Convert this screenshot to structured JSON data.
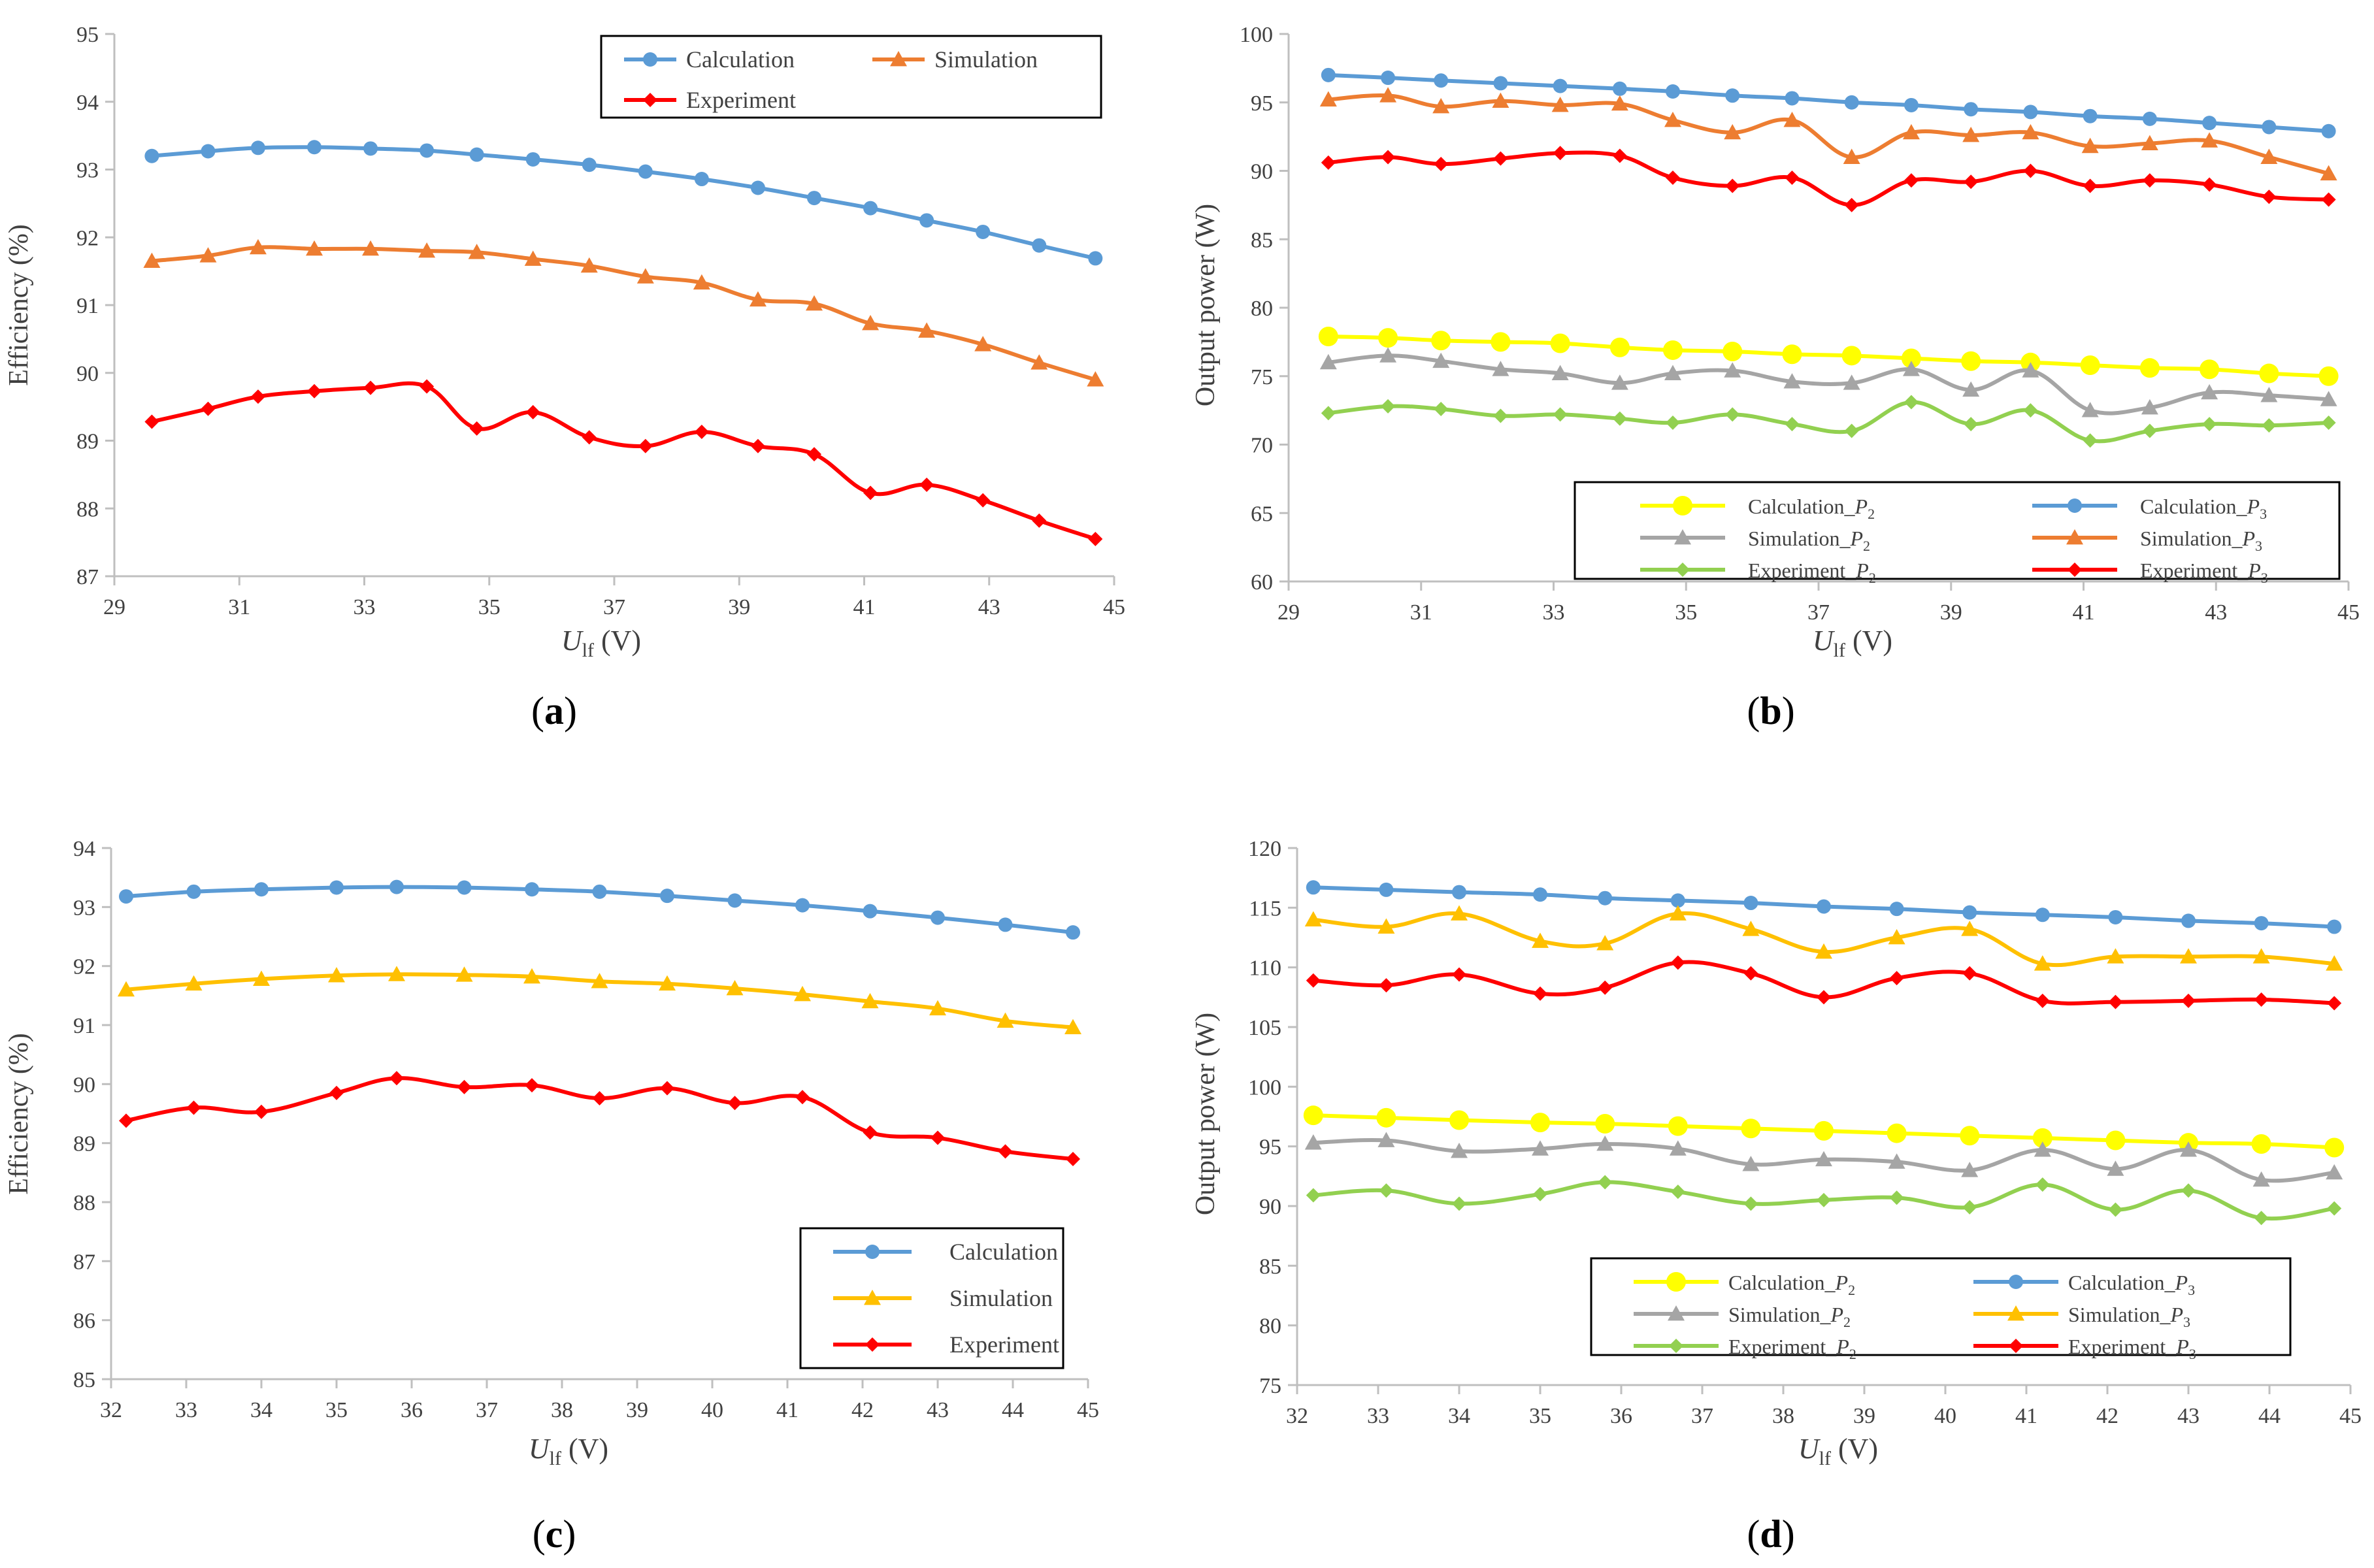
{
  "figure": {
    "panels": [
      {
        "id": "a",
        "caption_letter": "a",
        "ylabel": "Efficiency (%)",
        "xlabel_main": "U",
        "xlabel_sub": "lf",
        "xlabel_unit": " (V)"
      },
      {
        "id": "b",
        "caption_letter": "b",
        "ylabel": "Output power (W)",
        "xlabel_main": "U",
        "xlabel_sub": "lf",
        "xlabel_unit": " (V)"
      },
      {
        "id": "c",
        "caption_letter": "c",
        "ylabel": "Efficiency (%)",
        "xlabel_main": "U",
        "xlabel_sub": "lf",
        "xlabel_unit": " (V)"
      },
      {
        "id": "d",
        "caption_letter": "d",
        "ylabel": "Output power (W)",
        "xlabel_main": "U",
        "xlabel_sub": "lf",
        "xlabel_unit": " (V)"
      }
    ]
  },
  "chart_data": [
    {
      "id": "a",
      "type": "line",
      "title": "",
      "xlabel": "Ulf (V)",
      "ylabel": "Efficiency (%)",
      "xlim": [
        29,
        45
      ],
      "ylim": [
        87,
        95
      ],
      "xticks": [
        29,
        31,
        33,
        35,
        37,
        39,
        41,
        43,
        45
      ],
      "yticks": [
        87,
        88,
        89,
        90,
        91,
        92,
        93,
        94,
        95
      ],
      "grid": false,
      "legend": {
        "placement": "top-right",
        "columns": 2,
        "entries": [
          {
            "label": "Calculation",
            "marker_label": ""
          },
          {
            "label": "Simulation",
            "marker_label": ""
          },
          {
            "label": "Experiment",
            "marker_label": ""
          }
        ]
      },
      "series": [
        {
          "name": "Calculation",
          "color": "#5b9bd5",
          "marker": "circle",
          "x": [
            29.6,
            30.5,
            31.3,
            32.2,
            33.1,
            34.0,
            34.8,
            35.7,
            36.6,
            37.5,
            38.4,
            39.3,
            40.2,
            41.1,
            42.0,
            42.9,
            43.8,
            44.7
          ],
          "y": [
            93.2,
            93.27,
            93.32,
            93.33,
            93.31,
            93.28,
            93.22,
            93.15,
            93.07,
            92.97,
            92.86,
            92.73,
            92.58,
            92.43,
            92.25,
            92.08,
            91.88,
            91.69
          ]
        },
        {
          "name": "Simulation",
          "color": "#ed7d31",
          "marker": "triangle",
          "x": [
            29.6,
            30.5,
            31.3,
            32.2,
            33.1,
            34.0,
            34.8,
            35.7,
            36.6,
            37.5,
            38.4,
            39.3,
            40.2,
            41.1,
            42.0,
            42.9,
            43.8,
            44.7
          ],
          "y": [
            91.65,
            91.73,
            91.85,
            91.83,
            91.83,
            91.8,
            91.78,
            91.68,
            91.58,
            91.42,
            91.33,
            91.08,
            91.02,
            90.73,
            90.62,
            90.42,
            90.15,
            89.9
          ]
        },
        {
          "name": "Experiment",
          "color": "#ff0000",
          "marker": "diamond",
          "x": [
            29.6,
            30.5,
            31.3,
            32.2,
            33.1,
            34.0,
            34.8,
            35.7,
            36.6,
            37.5,
            38.4,
            39.3,
            40.2,
            41.1,
            42.0,
            42.9,
            43.8,
            44.7
          ],
          "y": [
            89.28,
            89.47,
            89.65,
            89.73,
            89.78,
            89.8,
            89.18,
            89.42,
            89.05,
            88.92,
            89.13,
            88.92,
            88.8,
            88.23,
            88.35,
            88.12,
            87.82,
            87.55
          ]
        }
      ]
    },
    {
      "id": "b",
      "type": "line",
      "title": "",
      "xlabel": "Ulf (V)",
      "ylabel": "Output power (W)",
      "xlim": [
        29,
        45
      ],
      "ylim": [
        60,
        100
      ],
      "xticks": [
        29,
        31,
        33,
        35,
        37,
        39,
        41,
        43,
        45
      ],
      "yticks": [
        60,
        65,
        70,
        75,
        80,
        85,
        90,
        95,
        100
      ],
      "grid": false,
      "legend": {
        "placement": "bottom-right",
        "columns": 2,
        "entries": [
          {
            "label": "Calculation_",
            "subscript": "2",
            "italic": "P"
          },
          {
            "label": "Calculation_",
            "subscript": "3",
            "italic": "P"
          },
          {
            "label": "Simulation_",
            "subscript": "2",
            "italic": "P"
          },
          {
            "label": "Simulation_",
            "subscript": "3",
            "italic": "P"
          },
          {
            "label": "Experiment_",
            "subscript": "2",
            "italic": "P"
          },
          {
            "label": "Experiment_",
            "subscript": "3",
            "italic": "P"
          }
        ]
      },
      "series": [
        {
          "name": "Calculation_P2",
          "color": "#ffff00",
          "marker": "circle-large",
          "x": [
            29.6,
            30.5,
            31.3,
            32.2,
            33.1,
            34.0,
            34.8,
            35.7,
            36.6,
            37.5,
            38.4,
            39.3,
            40.2,
            41.1,
            42.0,
            42.9,
            43.8,
            44.7
          ],
          "y": [
            77.9,
            77.8,
            77.6,
            77.5,
            77.4,
            77.1,
            76.9,
            76.8,
            76.6,
            76.5,
            76.3,
            76.1,
            76.0,
            75.8,
            75.6,
            75.5,
            75.2,
            75.0
          ]
        },
        {
          "name": "Calculation_P3",
          "color": "#5b9bd5",
          "marker": "circle",
          "x": [
            29.6,
            30.5,
            31.3,
            32.2,
            33.1,
            34.0,
            34.8,
            35.7,
            36.6,
            37.5,
            38.4,
            39.3,
            40.2,
            41.1,
            42.0,
            42.9,
            43.8,
            44.7
          ],
          "y": [
            97.0,
            96.8,
            96.6,
            96.4,
            96.2,
            96.0,
            95.8,
            95.5,
            95.3,
            95.0,
            94.8,
            94.5,
            94.3,
            94.0,
            93.8,
            93.5,
            93.2,
            92.9
          ]
        },
        {
          "name": "Simulation_P2",
          "color": "#a5a5a5",
          "marker": "triangle",
          "x": [
            29.6,
            30.5,
            31.3,
            32.2,
            33.1,
            34.0,
            34.8,
            35.7,
            36.6,
            37.5,
            38.4,
            39.3,
            40.2,
            41.1,
            42.0,
            42.9,
            43.8,
            44.7
          ],
          "y": [
            76.0,
            76.5,
            76.1,
            75.5,
            75.2,
            74.5,
            75.2,
            75.4,
            74.6,
            74.5,
            75.5,
            74.0,
            75.4,
            72.5,
            72.7,
            73.8,
            73.6,
            73.3
          ]
        },
        {
          "name": "Simulation_P3",
          "color": "#ed7d31",
          "marker": "triangle",
          "x": [
            29.6,
            30.5,
            31.3,
            32.2,
            33.1,
            34.0,
            34.8,
            35.7,
            36.6,
            37.5,
            38.4,
            39.3,
            40.2,
            41.1,
            42.0,
            42.9,
            43.8,
            44.7
          ],
          "y": [
            95.2,
            95.5,
            94.7,
            95.1,
            94.8,
            94.9,
            93.7,
            92.8,
            93.7,
            91.0,
            92.8,
            92.6,
            92.8,
            91.8,
            92.0,
            92.2,
            91.0,
            89.8
          ]
        },
        {
          "name": "Experiment_P2",
          "color": "#92d050",
          "marker": "diamond",
          "x": [
            29.6,
            30.5,
            31.3,
            32.2,
            33.1,
            34.0,
            34.8,
            35.7,
            36.6,
            37.5,
            38.4,
            39.3,
            40.2,
            41.1,
            42.0,
            42.9,
            43.8,
            44.7
          ],
          "y": [
            72.3,
            72.8,
            72.6,
            72.1,
            72.2,
            71.9,
            71.6,
            72.2,
            71.5,
            71.0,
            73.1,
            71.5,
            72.5,
            70.3,
            71.0,
            71.5,
            71.4,
            71.6
          ]
        },
        {
          "name": "Experiment_P3",
          "color": "#ff0000",
          "marker": "diamond",
          "x": [
            29.6,
            30.5,
            31.3,
            32.2,
            33.1,
            34.0,
            34.8,
            35.7,
            36.6,
            37.5,
            38.4,
            39.3,
            40.2,
            41.1,
            42.0,
            42.9,
            43.8,
            44.7
          ],
          "y": [
            90.6,
            91.0,
            90.5,
            90.9,
            91.3,
            91.1,
            89.5,
            88.9,
            89.5,
            87.5,
            89.3,
            89.2,
            90.0,
            88.9,
            89.3,
            89.0,
            88.1,
            87.9
          ]
        }
      ]
    },
    {
      "id": "c",
      "type": "line",
      "title": "",
      "xlabel": "Ulf (V)",
      "ylabel": "Efficiency (%)",
      "xlim": [
        32,
        45
      ],
      "ylim": [
        85,
        94
      ],
      "xticks": [
        32,
        33,
        34,
        35,
        36,
        37,
        38,
        39,
        40,
        41,
        42,
        43,
        44,
        45
      ],
      "yticks": [
        85,
        86,
        87,
        88,
        89,
        90,
        91,
        92,
        93,
        94
      ],
      "grid": false,
      "legend": {
        "placement": "bottom-right",
        "columns": 1,
        "entries": [
          {
            "label": "Calculation"
          },
          {
            "label": "Simulation"
          },
          {
            "label": "Experiment"
          }
        ]
      },
      "series": [
        {
          "name": "Calculation",
          "color": "#5b9bd5",
          "marker": "circle",
          "x": [
            32.2,
            33.1,
            34.0,
            35.0,
            35.8,
            36.7,
            37.6,
            38.5,
            39.4,
            40.3,
            41.2,
            42.1,
            43.0,
            43.9,
            44.8
          ],
          "y": [
            93.18,
            93.26,
            93.3,
            93.33,
            93.34,
            93.33,
            93.3,
            93.26,
            93.19,
            93.11,
            93.03,
            92.93,
            92.82,
            92.7,
            92.57
          ]
        },
        {
          "name": "Simulation",
          "color": "#ffc000",
          "marker": "triangle",
          "x": [
            32.2,
            33.1,
            34.0,
            35.0,
            35.8,
            36.7,
            37.6,
            38.5,
            39.4,
            40.3,
            41.2,
            42.1,
            43.0,
            43.9,
            44.8
          ],
          "y": [
            91.6,
            91.7,
            91.78,
            91.84,
            91.86,
            91.85,
            91.82,
            91.74,
            91.7,
            91.62,
            91.52,
            91.4,
            91.28,
            91.07,
            90.96
          ]
        },
        {
          "name": "Experiment",
          "color": "#ff0000",
          "marker": "diamond",
          "x": [
            32.2,
            33.1,
            34.0,
            35.0,
            35.8,
            36.7,
            37.6,
            38.5,
            39.4,
            40.3,
            41.2,
            42.1,
            43.0,
            43.9,
            44.8
          ],
          "y": [
            89.38,
            89.6,
            89.53,
            89.85,
            90.1,
            89.95,
            89.98,
            89.76,
            89.93,
            89.68,
            89.78,
            89.18,
            89.09,
            88.86,
            88.73
          ]
        }
      ]
    },
    {
      "id": "d",
      "type": "line",
      "title": "",
      "xlabel": "Ulf (V)",
      "ylabel": "Output power (W)",
      "xlim": [
        32,
        45
      ],
      "ylim": [
        75,
        120
      ],
      "xticks": [
        32,
        33,
        34,
        35,
        36,
        37,
        38,
        39,
        40,
        41,
        42,
        43,
        44,
        45
      ],
      "yticks": [
        75,
        80,
        85,
        90,
        95,
        100,
        105,
        110,
        115,
        120
      ],
      "grid": false,
      "legend": {
        "placement": "bottom-right",
        "columns": 2,
        "entries": [
          {
            "label": "Calculation_",
            "subscript": "2",
            "italic": "P"
          },
          {
            "label": "Calculation_",
            "subscript": "3",
            "italic": "P"
          },
          {
            "label": "Simulation_",
            "subscript": "2",
            "italic": "P"
          },
          {
            "label": "Simulation_",
            "subscript": "3",
            "italic": "P"
          },
          {
            "label": "Experiment_",
            "subscript": "2",
            "italic": "P"
          },
          {
            "label": "Experiment_",
            "subscript": "3",
            "italic": "P"
          }
        ]
      },
      "series": [
        {
          "name": "Calculation_P2",
          "color": "#ffff00",
          "marker": "circle-large",
          "x": [
            32.2,
            33.1,
            34.0,
            35.0,
            35.8,
            36.7,
            37.6,
            38.5,
            39.4,
            40.3,
            41.2,
            42.1,
            43.0,
            43.9,
            44.8
          ],
          "y": [
            97.6,
            97.4,
            97.2,
            97.0,
            96.9,
            96.7,
            96.5,
            96.3,
            96.1,
            95.9,
            95.7,
            95.5,
            95.3,
            95.2,
            94.9
          ]
        },
        {
          "name": "Calculation_P3",
          "color": "#5b9bd5",
          "marker": "circle",
          "x": [
            32.2,
            33.1,
            34.0,
            35.0,
            35.8,
            36.7,
            37.6,
            38.5,
            39.4,
            40.3,
            41.2,
            42.1,
            43.0,
            43.9,
            44.8
          ],
          "y": [
            116.7,
            116.5,
            116.3,
            116.1,
            115.8,
            115.6,
            115.4,
            115.1,
            114.9,
            114.6,
            114.4,
            114.2,
            113.9,
            113.7,
            113.4
          ]
        },
        {
          "name": "Simulation_P2",
          "color": "#a5a5a5",
          "marker": "triangle",
          "x": [
            32.2,
            33.1,
            34.0,
            35.0,
            35.8,
            36.7,
            37.6,
            38.5,
            39.4,
            40.3,
            41.2,
            42.1,
            43.0,
            43.9,
            44.8
          ],
          "y": [
            95.3,
            95.5,
            94.6,
            94.8,
            95.2,
            94.8,
            93.5,
            93.9,
            93.7,
            93.0,
            94.7,
            93.1,
            94.7,
            92.2,
            92.8
          ]
        },
        {
          "name": "Simulation_P3",
          "color": "#ffc000",
          "marker": "triangle",
          "x": [
            32.2,
            33.1,
            34.0,
            35.0,
            35.8,
            36.7,
            37.6,
            38.5,
            39.4,
            40.3,
            41.2,
            42.1,
            43.0,
            43.9,
            44.8
          ],
          "y": [
            114.0,
            113.4,
            114.5,
            112.2,
            112.0,
            114.5,
            113.2,
            111.3,
            112.5,
            113.2,
            110.3,
            110.9,
            110.9,
            110.9,
            110.3
          ]
        },
        {
          "name": "Experiment_P2",
          "color": "#92d050",
          "marker": "diamond",
          "x": [
            32.2,
            33.1,
            34.0,
            35.0,
            35.8,
            36.7,
            37.6,
            38.5,
            39.4,
            40.3,
            41.2,
            42.1,
            43.0,
            43.9,
            44.8
          ],
          "y": [
            90.9,
            91.3,
            90.2,
            91.0,
            92.0,
            91.2,
            90.2,
            90.5,
            90.7,
            89.9,
            91.8,
            89.7,
            91.3,
            89.0,
            89.8
          ]
        },
        {
          "name": "Experiment_P3",
          "color": "#ff0000",
          "marker": "diamond",
          "x": [
            32.2,
            33.1,
            34.0,
            35.0,
            35.8,
            36.7,
            37.6,
            38.5,
            39.4,
            40.3,
            41.2,
            42.1,
            43.0,
            43.9,
            44.8
          ],
          "y": [
            108.9,
            108.5,
            109.4,
            107.8,
            108.3,
            110.4,
            109.5,
            107.5,
            109.1,
            109.5,
            107.2,
            107.1,
            107.2,
            107.3,
            107.0
          ]
        }
      ]
    }
  ]
}
